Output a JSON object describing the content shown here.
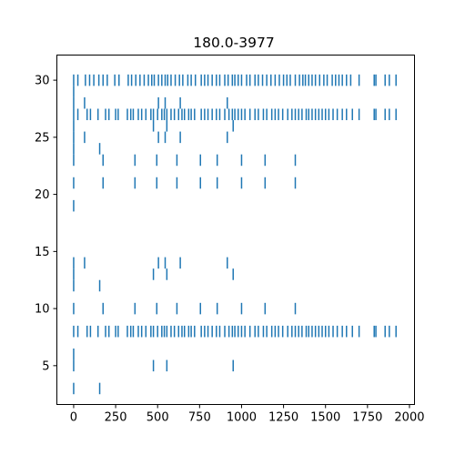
{
  "chart_data": {
    "type": "scatter",
    "title": "180.0-3977",
    "xlabel": "",
    "ylabel": "",
    "xlim": [
      -100,
      2030
    ],
    "ylim": [
      1.6,
      32.2
    ],
    "x_ticks": [
      0,
      250,
      500,
      750,
      1000,
      1250,
      1500,
      1750,
      2000
    ],
    "y_ticks": [
      5,
      10,
      15,
      20,
      25,
      30
    ],
    "marker": "vertical-line",
    "marker_color": "#1f77b4",
    "grid": false,
    "rows": [
      {
        "y": 30,
        "x": [
          0,
          25,
          70,
          95,
          120,
          150,
          175,
          200,
          245,
          270,
          325,
          345,
          370,
          395,
          420,
          445,
          465,
          480,
          505,
          525,
          545,
          560,
          580,
          605,
          630,
          650,
          680,
          700,
          725,
          760,
          780,
          800,
          825,
          850,
          870,
          900,
          920,
          945,
          960,
          980,
          1000,
          1030,
          1050,
          1080,
          1100,
          1125,
          1150,
          1175,
          1200,
          1225,
          1250,
          1270,
          1290,
          1320,
          1345,
          1365,
          1380,
          1400,
          1420,
          1440,
          1465,
          1490,
          1510,
          1540,
          1560,
          1580,
          1600,
          1625,
          1650,
          1700,
          1790,
          1800,
          1855,
          1880,
          1920
        ]
      },
      {
        "y": 29,
        "x": [
          0
        ]
      },
      {
        "y": 28,
        "x": [
          0,
          65,
          505,
          545,
          635,
          915
        ]
      },
      {
        "y": 27,
        "x": [
          0,
          25,
          80,
          100,
          145,
          190,
          210,
          250,
          265,
          320,
          340,
          355,
          385,
          405,
          430,
          460,
          475,
          500,
          525,
          540,
          555,
          580,
          600,
          625,
          645,
          660,
          685,
          700,
          720,
          760,
          780,
          800,
          825,
          850,
          870,
          900,
          925,
          945,
          960,
          980,
          1000,
          1020,
          1050,
          1080,
          1100,
          1130,
          1150,
          1180,
          1200,
          1220,
          1245,
          1275,
          1300,
          1320,
          1340,
          1360,
          1385,
          1400,
          1420,
          1440,
          1460,
          1480,
          1500,
          1520,
          1545,
          1570,
          1600,
          1625,
          1660,
          1700,
          1790,
          1800,
          1855,
          1880,
          1920
        ]
      },
      {
        "y": 26,
        "x": [
          0,
          475,
          555,
          950
        ]
      },
      {
        "y": 25,
        "x": [
          0,
          65,
          505,
          545,
          635,
          915
        ]
      },
      {
        "y": 24,
        "x": [
          0,
          155
        ]
      },
      {
        "y": 23,
        "x": [
          0,
          175,
          365,
          495,
          615,
          755,
          855,
          1000,
          1140,
          1320
        ]
      },
      {
        "y": 21,
        "x": [
          0,
          175,
          365,
          495,
          615,
          755,
          855,
          1000,
          1140,
          1320
        ]
      },
      {
        "y": 19,
        "x": [
          0
        ]
      },
      {
        "y": 14,
        "x": [
          0,
          65,
          505,
          545,
          635,
          915
        ]
      },
      {
        "y": 13,
        "x": [
          0,
          475,
          555,
          950
        ]
      },
      {
        "y": 12,
        "x": [
          0,
          155
        ]
      },
      {
        "y": 10,
        "x": [
          0,
          175,
          365,
          495,
          615,
          755,
          855,
          1000,
          1140,
          1320
        ]
      },
      {
        "y": 8,
        "x": [
          0,
          25,
          80,
          100,
          145,
          190,
          210,
          250,
          265,
          320,
          340,
          355,
          385,
          405,
          430,
          460,
          475,
          500,
          525,
          540,
          555,
          580,
          600,
          625,
          645,
          660,
          685,
          700,
          720,
          760,
          780,
          800,
          825,
          850,
          870,
          900,
          925,
          945,
          960,
          980,
          1000,
          1020,
          1050,
          1080,
          1100,
          1130,
          1150,
          1180,
          1200,
          1220,
          1245,
          1275,
          1300,
          1320,
          1340,
          1360,
          1385,
          1400,
          1420,
          1440,
          1460,
          1480,
          1500,
          1520,
          1545,
          1570,
          1600,
          1625,
          1660,
          1700,
          1790,
          1800,
          1855,
          1880,
          1920
        ]
      },
      {
        "y": 6,
        "x": [
          0
        ]
      },
      {
        "y": 5,
        "x": [
          0,
          475,
          555,
          950
        ]
      },
      {
        "y": 3,
        "x": [
          0,
          155
        ]
      }
    ]
  }
}
